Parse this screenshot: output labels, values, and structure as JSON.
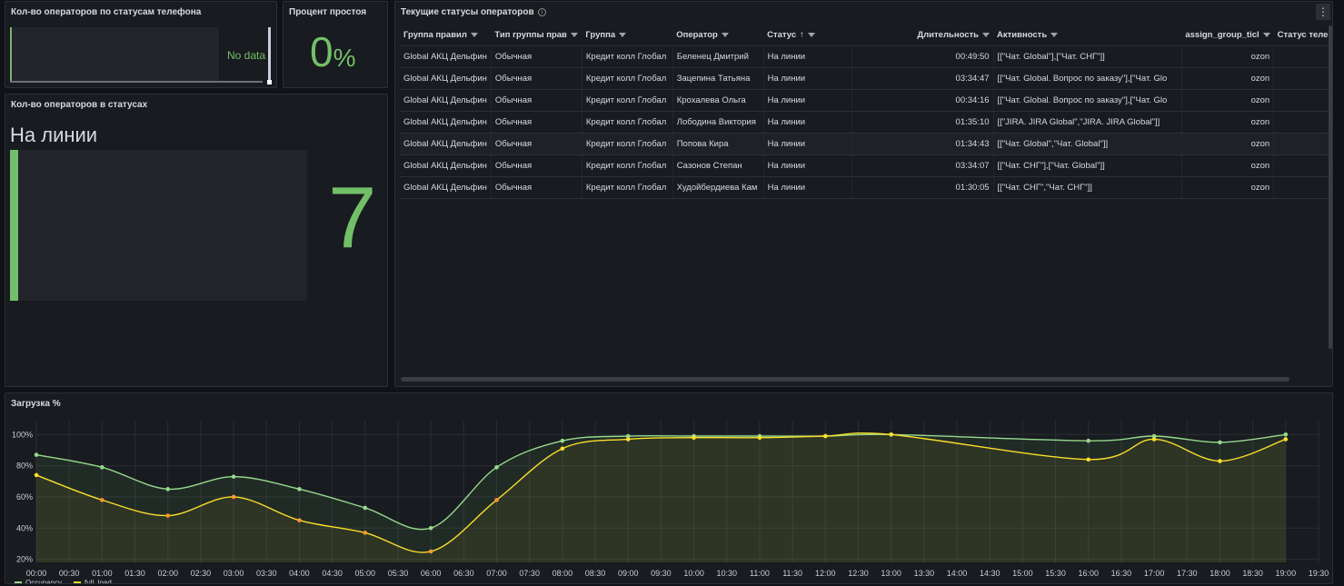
{
  "panel_phone": {
    "title": "Кол-во операторов по статусам телефона",
    "no_data": "No data"
  },
  "panel_idle": {
    "title": "Процент простоя",
    "value": "0",
    "unit": "%"
  },
  "panel_status_count": {
    "title": "Кол-во операторов в статусах",
    "label": "На линии",
    "value": "7",
    "fill_fraction": 1.0
  },
  "panel_table": {
    "title": "Текущие статусы операторов",
    "info_icon": "info-icon",
    "menu_icon": "kebab-menu-icon",
    "columns": [
      "Группа правил",
      "Тип группы прав",
      "Группа",
      "Оператор",
      "Статус",
      "Длительность",
      "Активность",
      "assign_group_ticl",
      "Статус теле"
    ],
    "rows": [
      [
        "Global АКЦ Дельфин",
        "Обычная",
        "Кредит колл Глобал",
        "Беленец Дмитрий",
        "На линии",
        "00:49:50",
        "[[\"Чат. Global\"],[\"Чат. СНГ\"]]",
        "ozon",
        ""
      ],
      [
        "Global АКЦ Дельфин",
        "Обычная",
        "Кредит колл Глобал",
        "Зацепина Татьяна",
        "На линии",
        "03:34:47",
        "[[\"Чат. Global. Вопрос по заказу\"],[\"Чат. Glo",
        "ozon",
        ""
      ],
      [
        "Global АКЦ Дельфин",
        "Обычная",
        "Кредит колл Глобал",
        "Крохалева Ольга",
        "На линии",
        "00:34:16",
        "[[\"Чат. Global. Вопрос по заказу\"],[\"Чат. Glo",
        "ozon",
        ""
      ],
      [
        "Global АКЦ Дельфин",
        "Обычная",
        "Кредит колл Глобал",
        "Лободина Виктория",
        "На линии",
        "01:35:10",
        "[[\"JIRA. JIRA Global\",\"JIRA. JIRA Global\"]]",
        "ozon",
        ""
      ],
      [
        "Global АКЦ Дельфин",
        "Обычная",
        "Кредит колл Глобал",
        "Попова Кира",
        "На линии",
        "01:34:43",
        "[[\"Чат. Global\",\"Чат. Global\"]]",
        "ozon",
        ""
      ],
      [
        "Global АКЦ Дельфин",
        "Обычная",
        "Кредит колл Глобал",
        "Сазонов Степан",
        "На линии",
        "03:34:07",
        "[[\"Чат. СНГ\"],[\"Чат. Global\"]]",
        "ozon",
        ""
      ],
      [
        "Global АКЦ Дельфин",
        "Обычная",
        "Кредит колл Глобал",
        "Худойбердиева Кам",
        "На линии",
        "01:30:05",
        "[[\"Чат. СНГ\",\"Чат. СНГ\"]]",
        "ozon",
        ""
      ]
    ]
  },
  "colors": {
    "background": "#111217",
    "panel": "#181b1f",
    "green": "#73bf69",
    "series_occupancy": "#96d98d",
    "series_full_load": "#fade2a",
    "series_full_load_low": "#ff9830"
  },
  "chart_data": {
    "type": "line",
    "title": "Загрузка %",
    "x": [
      "00:00",
      "01:00",
      "02:00",
      "03:00",
      "04:00",
      "05:00",
      "06:00",
      "07:00",
      "08:00",
      "09:00",
      "10:00",
      "11:00",
      "12:00",
      "13:00",
      "16:00",
      "17:00",
      "18:00",
      "19:00"
    ],
    "x_ticks": [
      "00:00",
      "00:30",
      "01:00",
      "01:30",
      "02:00",
      "02:30",
      "03:00",
      "03:30",
      "04:00",
      "04:30",
      "05:00",
      "05:30",
      "06:00",
      "06:30",
      "07:00",
      "07:30",
      "08:00",
      "08:30",
      "09:00",
      "09:30",
      "10:00",
      "10:30",
      "11:00",
      "11:30",
      "12:00",
      "12:30",
      "13:00",
      "13:30",
      "14:00",
      "14:30",
      "15:00",
      "15:30",
      "16:00",
      "16:30",
      "17:00",
      "17:30",
      "18:00",
      "18:30",
      "19:00",
      "19:30"
    ],
    "y_ticks": [
      "20%",
      "40%",
      "60%",
      "80%",
      "100%"
    ],
    "ylim": [
      18,
      106
    ],
    "series": [
      {
        "name": "Occupancy",
        "values": [
          87,
          79,
          65,
          73,
          65,
          53,
          40,
          79,
          96,
          99,
          99,
          99,
          99,
          100,
          96,
          99,
          95,
          100
        ]
      },
      {
        "name": "full_load",
        "values": [
          74,
          58,
          48,
          60,
          45,
          37,
          25,
          58,
          91,
          97,
          98,
          98,
          99,
          100,
          84,
          97,
          83,
          97
        ]
      }
    ],
    "grid": true,
    "legend": "bottom-left"
  }
}
